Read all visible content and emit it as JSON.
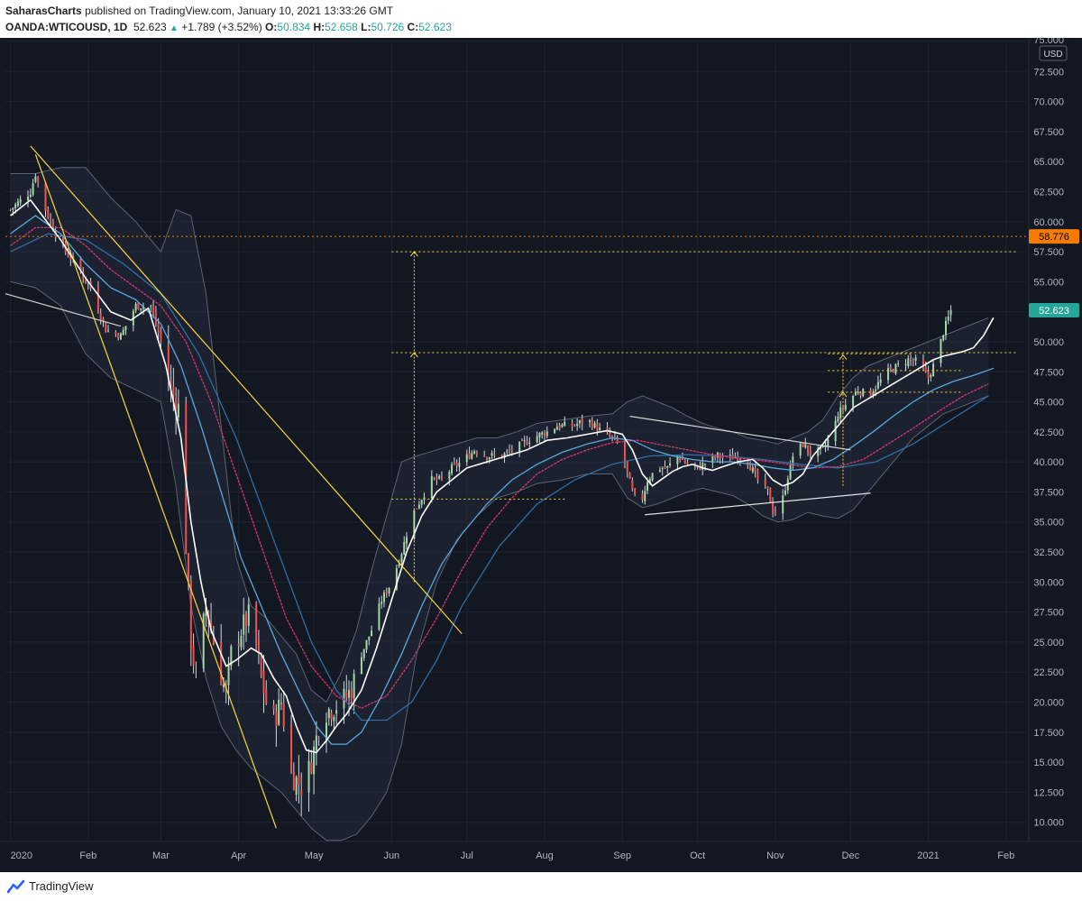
{
  "header": {
    "author": "SaharasCharts",
    "published_text": "published on TradingView.com, January 10, 2021 13:33:26 GMT",
    "symbol": "OANDA:WTICOUSD, 1D",
    "last": "52.623",
    "change": "+1.789 (+3.52%)",
    "o_label": "O:",
    "o_value": "50.834",
    "h_label": "H:",
    "h_value": "52.658",
    "l_label": "L:",
    "l_value": "50.726",
    "c_label": "C:",
    "c_value": "52.623"
  },
  "footer": {
    "brand": "TradingView"
  },
  "chart_data": {
    "type": "candlestick",
    "currency_label": "USD",
    "y_range": [
      8.4,
      75.0
    ],
    "y_ticks": [
      "10.000",
      "12.500",
      "15.000",
      "17.500",
      "20.000",
      "22.500",
      "25.000",
      "27.500",
      "30.000",
      "32.500",
      "35.000",
      "37.500",
      "40.000",
      "42.500",
      "45.000",
      "47.500",
      "50.000",
      "52.500",
      "55.000",
      "57.500",
      "60.000",
      "62.500",
      "65.000",
      "67.500",
      "70.000",
      "72.500",
      "75.000"
    ],
    "x_ticks": [
      "2020",
      "Feb",
      "Mar",
      "Apr",
      "May",
      "Jun",
      "Jul",
      "Aug",
      "Sep",
      "Oct",
      "Nov",
      "Dec",
      "2021",
      "Feb"
    ],
    "x_tick_days": [
      0,
      31,
      60,
      91,
      121,
      152,
      182,
      213,
      244,
      274,
      305,
      335,
      366,
      397
    ],
    "x_range_days": [
      -2,
      405
    ],
    "price_labels": [
      {
        "value": 58.776,
        "text": "58.776",
        "color": "#f57c00"
      },
      {
        "value": 52.623,
        "text": "52.623",
        "color": "#26a69a"
      }
    ],
    "horizontal_levels": [
      {
        "value": 58.776,
        "color": "#f57c00",
        "style": "dotted",
        "from_day": -2
      },
      {
        "value": 57.5,
        "color": "#fdd835",
        "style": "dotted",
        "from_day": 152
      },
      {
        "value": 49.1,
        "color": "#fdd835",
        "style": "dotted",
        "from_day": 152
      },
      {
        "value": 36.9,
        "color": "#fdd835",
        "style": "dotted",
        "from_day": 152,
        "to_day": 221
      },
      {
        "value": 49.0,
        "color": "#fdd835",
        "style": "dotted",
        "from_day": 326,
        "to_day": 360
      },
      {
        "value": 47.6,
        "color": "#fdd835",
        "style": "dotted",
        "from_day": 326,
        "to_day": 380
      },
      {
        "value": 45.8,
        "color": "#fdd835",
        "style": "dotted",
        "from_day": 326,
        "to_day": 380
      }
    ],
    "trendlines": [
      {
        "from": [
          8,
          66.3
        ],
        "to": [
          180,
          25.7
        ],
        "color": "#fdd835"
      },
      {
        "from": [
          10,
          65.6
        ],
        "to": [
          106,
          9.5
        ],
        "color": "#fdd835"
      },
      {
        "from": [
          -2,
          54.0
        ],
        "to": [
          44,
          51.3
        ],
        "color": "#d0d0d0"
      },
      {
        "from": [
          247,
          43.8
        ],
        "to": [
          335,
          41.0
        ],
        "color": "#e0e0e0"
      },
      {
        "from": [
          253,
          35.6
        ],
        "to": [
          343,
          37.4
        ],
        "color": "#e0e0e0"
      }
    ],
    "projection_arrows": [
      {
        "day": 161,
        "from": 30.0,
        "to": 57.5,
        "mid": 49.1,
        "color": "#fdd835"
      },
      {
        "day": 332,
        "from": 38.0,
        "to": 48.9,
        "mid": 45.8,
        "color": "#fdd835"
      }
    ],
    "series": [
      {
        "name": "",
        "color": "#ffffff",
        "days": [
          0,
          8,
          20,
          30,
          40,
          48,
          55,
          62,
          68,
          72,
          76,
          80,
          86,
          90,
          96,
          100,
          105,
          110,
          114,
          118,
          122,
          126,
          130,
          134,
          140,
          146,
          152,
          158,
          164,
          170,
          176,
          182,
          190,
          198,
          206,
          214,
          222,
          230,
          238,
          244,
          248,
          252,
          256,
          260,
          264,
          268,
          272,
          276,
          280,
          284,
          290,
          296,
          300,
          304,
          308,
          312,
          316,
          320,
          324,
          328,
          332,
          336,
          340,
          344,
          348,
          352,
          356,
          360,
          364,
          368,
          372,
          376,
          380,
          384,
          388,
          392
        ],
        "values": [
          60.5,
          61.8,
          58.5,
          55.3,
          52.5,
          51.8,
          52.8,
          48.0,
          42.0,
          35.0,
          30.0,
          26.0,
          23.0,
          23.5,
          24.5,
          24.0,
          22.0,
          20.5,
          18.0,
          16.0,
          15.8,
          16.8,
          18.0,
          19.0,
          21.0,
          24.5,
          28.5,
          32.5,
          35.5,
          37.5,
          38.5,
          39.5,
          40.0,
          40.5,
          41.0,
          41.8,
          42.0,
          42.3,
          42.6,
          42.3,
          41.0,
          39.0,
          38.0,
          38.6,
          39.2,
          39.6,
          39.8,
          39.5,
          39.3,
          39.6,
          40.0,
          40.2,
          39.5,
          38.5,
          38.0,
          38.3,
          39.0,
          40.5,
          41.5,
          42.5,
          43.5,
          44.5,
          45.0,
          45.5,
          46.0,
          46.5,
          47.0,
          47.5,
          48.0,
          48.5,
          48.8,
          49.0,
          49.2,
          49.5,
          50.5,
          52.0
        ]
      },
      {
        "name": "",
        "color": "#5aa8e0",
        "days": [
          0,
          10,
          20,
          30,
          40,
          50,
          60,
          68,
          76,
          84,
          92,
          100,
          108,
          116,
          122,
          128,
          134,
          140,
          148,
          156,
          164,
          172,
          180,
          190,
          200,
          210,
          220,
          230,
          240,
          248,
          256,
          264,
          272,
          280,
          288,
          296,
          304,
          312,
          320,
          328,
          336,
          344,
          352,
          360,
          368,
          376,
          384,
          392
        ],
        "values": [
          59.0,
          60.5,
          59.0,
          56.5,
          54.5,
          53.5,
          51.5,
          48.0,
          43.0,
          37.5,
          32.0,
          28.0,
          24.0,
          20.5,
          18.0,
          16.5,
          16.5,
          17.5,
          20.5,
          24.0,
          28.0,
          31.5,
          34.0,
          36.5,
          38.5,
          39.8,
          40.8,
          41.5,
          42.0,
          41.8,
          41.0,
          40.5,
          40.2,
          40.0,
          40.0,
          39.8,
          39.5,
          39.3,
          39.5,
          40.2,
          41.3,
          42.5,
          43.8,
          45.0,
          46.0,
          46.7,
          47.2,
          47.8
        ]
      },
      {
        "name": "",
        "color": "#d8376c",
        "days": [
          0,
          10,
          20,
          30,
          40,
          50,
          60,
          70,
          80,
          90,
          100,
          110,
          120,
          130,
          140,
          150,
          160,
          170,
          180,
          190,
          200,
          210,
          220,
          230,
          240,
          250,
          260,
          270,
          280,
          290,
          300,
          310,
          320,
          330,
          340,
          350,
          360,
          370,
          380,
          390
        ],
        "values": [
          58.0,
          59.5,
          59.5,
          58.0,
          56.0,
          54.5,
          53.0,
          50.0,
          45.0,
          39.0,
          33.0,
          27.0,
          23.0,
          20.5,
          19.5,
          20.5,
          23.5,
          27.0,
          31.0,
          34.5,
          37.0,
          39.0,
          40.2,
          41.0,
          41.6,
          41.8,
          41.4,
          41.0,
          40.6,
          40.3,
          40.1,
          39.8,
          39.5,
          39.6,
          40.2,
          41.5,
          42.8,
          44.2,
          45.5,
          46.5
        ]
      },
      {
        "name": "",
        "color": "#2f6da8",
        "days": [
          0,
          15,
          30,
          45,
          60,
          75,
          90,
          105,
          120,
          130,
          140,
          150,
          160,
          170,
          180,
          195,
          210,
          225,
          240,
          255,
          270,
          285,
          300,
          315,
          330,
          345,
          360,
          375,
          390
        ],
        "values": [
          57.5,
          59.0,
          58.5,
          56.5,
          54.0,
          49.0,
          42.0,
          33.5,
          25.0,
          21.0,
          18.5,
          18.5,
          20.0,
          23.5,
          28.0,
          33.0,
          36.5,
          38.5,
          39.8,
          40.5,
          40.6,
          40.5,
          40.2,
          39.8,
          39.5,
          40.0,
          41.5,
          43.5,
          45.5
        ]
      }
    ],
    "bands": {
      "days": [
        0,
        10,
        20,
        30,
        40,
        50,
        60,
        66,
        72,
        78,
        84,
        90,
        96,
        102,
        108,
        114,
        120,
        126,
        132,
        138,
        144,
        150,
        156,
        162,
        170,
        178,
        186,
        194,
        202,
        210,
        220,
        230,
        240,
        246,
        252,
        258,
        264,
        270,
        276,
        282,
        288,
        294,
        300,
        306,
        312,
        318,
        324,
        330,
        336,
        342,
        348,
        354,
        360,
        366,
        372,
        378,
        384,
        390
      ],
      "upper": [
        64.0,
        64.0,
        64.5,
        64.5,
        62.0,
        60.0,
        57.5,
        61.0,
        60.5,
        54.0,
        43.0,
        32.0,
        28.0,
        27.0,
        25.5,
        24.0,
        21.0,
        20.0,
        22.5,
        26.0,
        31.0,
        35.5,
        40.0,
        40.5,
        41.0,
        41.5,
        42.0,
        42.0,
        42.5,
        43.2,
        43.5,
        43.8,
        44.0,
        45.0,
        45.5,
        45.0,
        44.5,
        43.8,
        43.2,
        42.8,
        42.5,
        42.0,
        41.8,
        41.5,
        42.0,
        42.5,
        43.5,
        45.5,
        47.0,
        48.0,
        48.5,
        49.0,
        49.5,
        50.0,
        50.5,
        51.0,
        51.5,
        52.0
      ],
      "lower": [
        55.0,
        54.5,
        53.0,
        49.0,
        47.0,
        46.0,
        45.0,
        38.0,
        28.0,
        22.0,
        18.0,
        16.0,
        14.5,
        13.5,
        12.5,
        11.0,
        9.5,
        8.5,
        8.5,
        9.0,
        10.5,
        12.5,
        16.5,
        24.0,
        30.0,
        33.5,
        35.5,
        37.0,
        37.5,
        38.2,
        38.5,
        39.0,
        39.0,
        37.0,
        36.2,
        36.5,
        37.0,
        37.5,
        37.8,
        37.5,
        37.2,
        36.5,
        35.5,
        35.0,
        35.2,
        35.8,
        35.5,
        35.3,
        36.0,
        37.5,
        39.0,
        40.5,
        42.0,
        43.0,
        44.0,
        44.5,
        45.0,
        45.5
      ]
    },
    "price_path": {
      "days": [
        0,
        8,
        10,
        14,
        20,
        26,
        32,
        38,
        44,
        50,
        56,
        60,
        64,
        68,
        70,
        72,
        74,
        78,
        82,
        86,
        88,
        92,
        96,
        100,
        104,
        108,
        112,
        116,
        118,
        121,
        124,
        128,
        132,
        136,
        140,
        144,
        148,
        152,
        156,
        160,
        164,
        168,
        172,
        176,
        180,
        185,
        190,
        196,
        202,
        208,
        214,
        218,
        224,
        230,
        236,
        240,
        244,
        246,
        248,
        250,
        252,
        254,
        258,
        262,
        266,
        270,
        274,
        278,
        282,
        286,
        290,
        294,
        298,
        302,
        304,
        306,
        308,
        310,
        312,
        316,
        320,
        324,
        328,
        330,
        334,
        338,
        342,
        346,
        350,
        354,
        358,
        362,
        366,
        369,
        372,
        375
      ],
      "values": [
        61.0,
        62.5,
        64.0,
        61.0,
        58.0,
        56.5,
        54.5,
        51.0,
        50.5,
        53.0,
        53.0,
        50.0,
        46.0,
        44.0,
        33.0,
        25.0,
        22.0,
        28.0,
        24.0,
        20.5,
        24.0,
        26.0,
        27.5,
        22.0,
        18.0,
        20.0,
        14.0,
        13.0,
        13.5,
        16.0,
        19.0,
        19.5,
        20.0,
        21.0,
        24.0,
        26.0,
        28.5,
        30.0,
        32.5,
        35.5,
        37.0,
        38.5,
        38.5,
        39.5,
        40.0,
        41.0,
        40.5,
        40.5,
        41.2,
        42.0,
        42.5,
        43.0,
        43.0,
        43.5,
        42.5,
        42.0,
        41.0,
        39.0,
        37.5,
        36.5,
        37.0,
        38.5,
        39.5,
        39.5,
        40.5,
        39.8,
        39.5,
        40.0,
        40.5,
        40.3,
        40.5,
        40.0,
        38.5,
        37.5,
        36.0,
        35.5,
        37.0,
        38.8,
        40.5,
        41.5,
        40.5,
        41.0,
        42.5,
        44.0,
        45.0,
        46.0,
        45.5,
        46.5,
        47.5,
        48.0,
        48.5,
        48.3,
        47.0,
        48.5,
        50.8,
        52.6
      ]
    }
  }
}
